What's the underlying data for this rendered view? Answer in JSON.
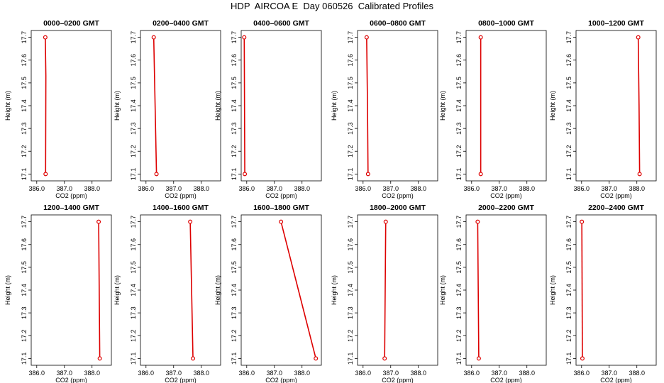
{
  "title": "HDP  AIRCOA E  Day 060526  Calibrated Profiles",
  "chart_data": {
    "type": "line",
    "title": "HDP  AIRCOA E  Day 060526  Calibrated Profiles",
    "xlabel": "CO2 (ppm)",
    "ylabel": "Height (m)",
    "xlim": [
      385.8,
      388.7
    ],
    "ylim": [
      17.07,
      17.73
    ],
    "x_ticks": [
      "386.0",
      "387.0",
      "388.0"
    ],
    "x_tick_values": [
      386.0,
      387.0,
      388.0
    ],
    "y_ticks": [
      "17.1",
      "17.2",
      "17.3",
      "17.4",
      "17.5",
      "17.6",
      "17.7"
    ],
    "y_tick_values": [
      17.1,
      17.2,
      17.3,
      17.4,
      17.5,
      17.6,
      17.7
    ],
    "line_color": "#dd0000",
    "marker": "open-circle",
    "panels": [
      {
        "title": "0000–0200 GMT",
        "x": [
          386.32,
          386.33,
          386.31
        ],
        "y": [
          17.1,
          17.53,
          17.7
        ]
      },
      {
        "title": "0200–0400 GMT",
        "x": [
          386.38,
          386.33,
          386.28
        ],
        "y": [
          17.1,
          17.4,
          17.7
        ]
      },
      {
        "title": "0400–0600 GMT",
        "x": [
          385.93,
          385.92,
          385.91
        ],
        "y": [
          17.1,
          17.4,
          17.7
        ]
      },
      {
        "title": "0600–0800 GMT",
        "x": [
          386.18,
          386.16,
          386.13
        ],
        "y": [
          17.1,
          17.4,
          17.7
        ]
      },
      {
        "title": "0800–1000 GMT",
        "x": [
          386.33,
          386.33,
          386.33
        ],
        "y": [
          17.1,
          17.4,
          17.7
        ]
      },
      {
        "title": "1000–1200 GMT",
        "x": [
          388.1,
          388.08,
          388.05
        ],
        "y": [
          17.1,
          17.4,
          17.7
        ]
      },
      {
        "title": "1200–1400 GMT",
        "x": [
          388.28,
          388.26,
          388.24
        ],
        "y": [
          17.1,
          17.4,
          17.7
        ]
      },
      {
        "title": "1400–1600 GMT",
        "x": [
          387.7,
          387.65,
          387.6
        ],
        "y": [
          17.1,
          17.4,
          17.7
        ]
      },
      {
        "title": "1600–1800 GMT",
        "x": [
          388.5,
          387.87,
          387.24
        ],
        "y": [
          17.1,
          17.4,
          17.7
        ]
      },
      {
        "title": "1800–2000 GMT",
        "x": [
          386.78,
          386.8,
          386.82
        ],
        "y": [
          17.1,
          17.4,
          17.7
        ]
      },
      {
        "title": "2000–2200 GMT",
        "x": [
          386.26,
          386.24,
          386.22
        ],
        "y": [
          17.1,
          17.4,
          17.7
        ]
      },
      {
        "title": "2200–2400 GMT",
        "x": [
          386.03,
          386.02,
          386.01
        ],
        "y": [
          17.1,
          17.4,
          17.7
        ]
      }
    ]
  }
}
